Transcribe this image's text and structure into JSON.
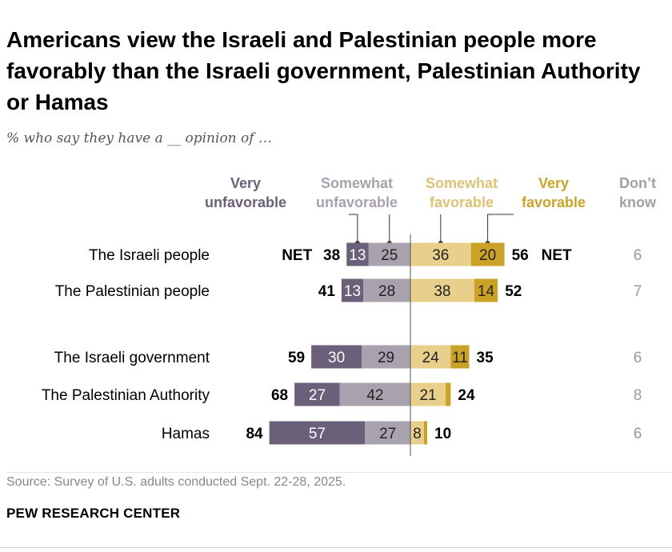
{
  "title": "Americans view the Israeli and Palestinian people more favorably than the Israeli government, Palestinian Authority or Hamas",
  "subtitle": "% who say they have a __ opinion of …",
  "source": "Source: Survey of U.S. adults conducted Sept. 22-28, 2025.",
  "brand": "PEW RESEARCH CENTER",
  "colors": {
    "very_unfavorable": "#6b6079",
    "somewhat_unfavorable": "#a8a1ae",
    "somewhat_favorable": "#e8d08c",
    "very_favorable": "#c9a227",
    "dont_know_text": "#9a9a9a",
    "hdr_very_unfav": "#6b6079",
    "hdr_somewhat_unfav": "#a8a1ae",
    "hdr_somewhat_fav": "#dcc275",
    "hdr_very_fav": "#c9a227",
    "hdr_dk": "#a0a0a0"
  },
  "chart_data": {
    "type": "bar",
    "orientation": "horizontal-diverging",
    "legend": {
      "very_unfavorable": [
        "Very",
        "unfavorable"
      ],
      "somewhat_unfavorable": [
        "Somewhat",
        "unfavorable"
      ],
      "somewhat_favorable": [
        "Somewhat",
        "favorable"
      ],
      "very_favorable": [
        "Very",
        "favorable"
      ],
      "dont_know": [
        "Don’t",
        "know"
      ]
    },
    "net_label": "NET",
    "categories": [
      "The Israeli people",
      "The Palestinian people",
      "The Israeli government",
      "The Palestinian Authority",
      "Hamas"
    ],
    "series": [
      {
        "name": "Very unfavorable",
        "values": [
          13,
          13,
          30,
          27,
          57
        ]
      },
      {
        "name": "Somewhat unfavorable",
        "values": [
          25,
          28,
          29,
          42,
          27
        ]
      },
      {
        "name": "Somewhat favorable",
        "values": [
          36,
          38,
          24,
          21,
          8
        ]
      },
      {
        "name": "Very favorable",
        "values": [
          20,
          14,
          11,
          3,
          2
        ]
      }
    ],
    "net_unfavorable": [
      38,
      41,
      59,
      68,
      84
    ],
    "net_favorable": [
      56,
      52,
      35,
      24,
      10
    ],
    "dont_know": [
      6,
      7,
      6,
      8,
      6
    ]
  }
}
